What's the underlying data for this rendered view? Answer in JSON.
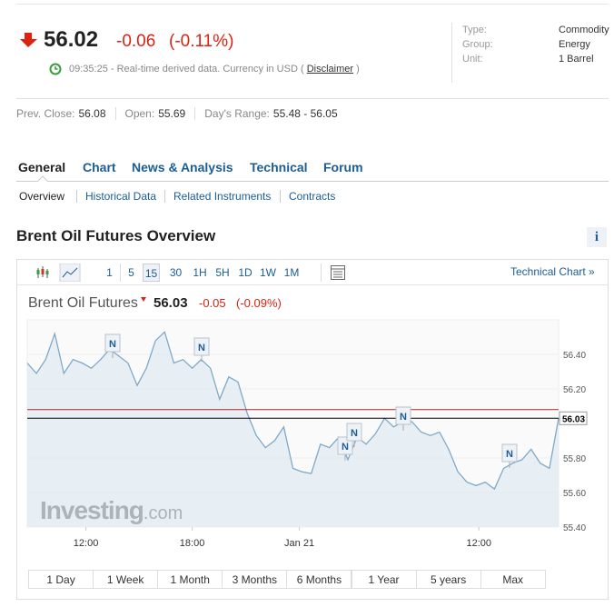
{
  "header": {
    "price": "56.02",
    "change": "-0.06",
    "change_pct": "(-0.11%)",
    "time": "09:35:25",
    "note": "- Real-time derived data. Currency in USD (",
    "disclaimer": "Disclaimer",
    "note_end": ")"
  },
  "info": [
    {
      "label": "Type:",
      "value": "Commodity"
    },
    {
      "label": "Group:",
      "value": "Energy"
    },
    {
      "label": "Unit:",
      "value": "1 Barrel"
    }
  ],
  "stats": [
    {
      "label": "Prev. Close:",
      "value": "56.08"
    },
    {
      "label": "Open:",
      "value": "55.69"
    },
    {
      "label": "Day's Range:",
      "value": "55.48 - 56.05"
    }
  ],
  "tabs": [
    "General",
    "Chart",
    "News & Analysis",
    "Technical",
    "Forum"
  ],
  "subtabs": [
    "Overview",
    "Historical Data",
    "Related Instruments",
    "Contracts"
  ],
  "section_title": "Brent Oil Futures Overview",
  "info_icon": "i",
  "intervals": [
    "1",
    "5",
    "15",
    "30",
    "1H",
    "5H",
    "1D",
    "1W",
    "1M"
  ],
  "active_interval": 2,
  "technical_link": "Technical Chart »",
  "ranges": [
    "1 Day",
    "1 Week",
    "1 Month",
    "3 Months",
    "6 Months",
    "1 Year",
    "5 years",
    "Max"
  ],
  "chart_data": {
    "type": "area",
    "title": "Brent Oil Futures",
    "last": "56.03",
    "change": "-0.05",
    "change_pct": "(-0.09%)",
    "values": [
      56.35,
      56.29,
      56.37,
      56.52,
      56.29,
      56.37,
      56.35,
      56.32,
      56.37,
      56.43,
      56.39,
      56.35,
      56.22,
      56.32,
      56.48,
      56.53,
      56.35,
      56.37,
      56.32,
      56.37,
      56.32,
      56.14,
      56.27,
      56.24,
      56.06,
      55.93,
      55.86,
      55.9,
      55.98,
      55.74,
      55.72,
      55.71,
      55.88,
      55.86,
      55.92,
      55.79,
      55.92,
      55.88,
      55.94,
      56.03,
      55.98,
      56.01,
      56.01,
      55.95,
      55.93,
      55.95,
      55.85,
      55.72,
      55.66,
      55.64,
      55.66,
      55.62,
      55.74,
      55.77,
      55.79,
      55.85,
      55.77,
      55.74,
      56.03
    ],
    "color": "#7fa9c9",
    "xlim": [
      0,
      58
    ],
    "xticks": [
      {
        "value": 6.4,
        "label": "12:00"
      },
      {
        "value": 18,
        "label": "18:00"
      },
      {
        "value": 29.7,
        "label": "Jan 21"
      },
      {
        "value": 49.3,
        "label": "12:00"
      }
    ],
    "ylim": [
      55.4,
      56.6
    ],
    "yticks": [
      {
        "value": 56.4,
        "label": "56.40"
      },
      {
        "value": 56.2,
        "label": "56.20"
      },
      {
        "value": 55.8,
        "label": "55.80"
      },
      {
        "value": 55.6,
        "label": "55.60"
      },
      {
        "value": 55.4,
        "label": "55.40"
      }
    ],
    "reference_lines": [
      {
        "value": 56.08,
        "color": "#b22222"
      },
      {
        "value": 56.03,
        "color": "#000000"
      }
    ],
    "news_marker": "N",
    "logo": {
      "brand": "Investing",
      "suffix": ".com"
    }
  }
}
